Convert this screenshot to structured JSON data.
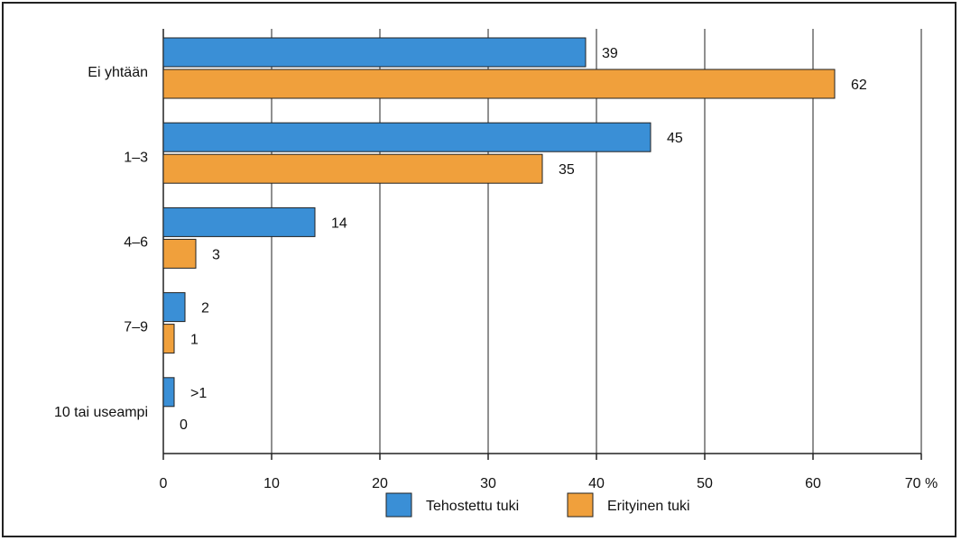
{
  "chart_data": {
    "type": "bar",
    "orientation": "horizontal",
    "categories": [
      "Ei yhtään",
      "1–3",
      "4–6",
      "7–9",
      "10 tai useampi"
    ],
    "series": [
      {
        "name": "Tehostettu tuki",
        "color": "#3a8fd6",
        "values": [
          39,
          45,
          14,
          2,
          1
        ],
        "labels": [
          "39",
          "45",
          "14",
          "2",
          ">1"
        ]
      },
      {
        "name": "Erityinen tuki",
        "color": "#f0a03c",
        "values": [
          62,
          35,
          3,
          1,
          0
        ],
        "labels": [
          "62",
          "35",
          "3",
          "1",
          "0"
        ]
      }
    ],
    "xlim": [
      0,
      70
    ],
    "xticks": [
      "0",
      "10",
      "20",
      "30",
      "40",
      "50",
      "60",
      "70 %"
    ],
    "grid": true,
    "legend": "bottom"
  }
}
